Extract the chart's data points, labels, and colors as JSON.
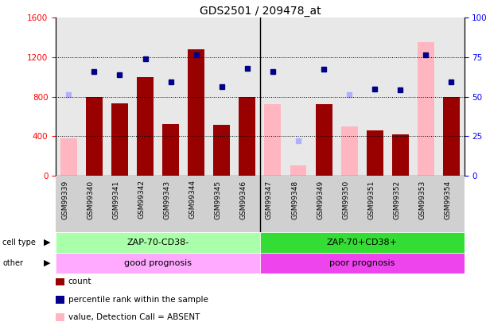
{
  "title": "GDS2501 / 209478_at",
  "samples": [
    "GSM99339",
    "GSM99340",
    "GSM99341",
    "GSM99342",
    "GSM99343",
    "GSM99344",
    "GSM99345",
    "GSM99346",
    "GSM99347",
    "GSM99348",
    "GSM99349",
    "GSM99350",
    "GSM99351",
    "GSM99352",
    "GSM99353",
    "GSM99354"
  ],
  "count_values": [
    null,
    800,
    730,
    1000,
    520,
    1280,
    510,
    800,
    null,
    null,
    720,
    null,
    460,
    420,
    null,
    800
  ],
  "count_absent_values": [
    380,
    null,
    null,
    null,
    null,
    null,
    null,
    null,
    720,
    100,
    null,
    500,
    null,
    null,
    1350,
    null
  ],
  "rank_values": [
    null,
    1050,
    1020,
    1180,
    950,
    1220,
    900,
    1090,
    1050,
    null,
    1080,
    null,
    880,
    870,
    1220,
    950
  ],
  "rank_absent_values": [
    820,
    null,
    null,
    null,
    null,
    null,
    null,
    null,
    null,
    350,
    null,
    820,
    null,
    null,
    null,
    null
  ],
  "ylim_left": [
    0,
    1600
  ],
  "ylim_right": [
    0,
    100
  ],
  "left_ticks": [
    0,
    400,
    800,
    1200,
    1600
  ],
  "right_ticks": [
    0,
    25,
    50,
    75,
    100
  ],
  "bar_color_present": "#990000",
  "bar_color_absent": "#ffb6c1",
  "rank_color_present": "#00008B",
  "rank_color_absent": "#b0b0ff",
  "cell_type_group1": "ZAP-70-CD38-",
  "cell_type_group2": "ZAP-70+CD38+",
  "other_group1": "good prognosis",
  "other_group2": "poor prognosis",
  "group1_color": "#aaffaa",
  "group2_color": "#33dd33",
  "other1_color": "#ffaaff",
  "other2_color": "#ee44ee",
  "split_index": 8
}
